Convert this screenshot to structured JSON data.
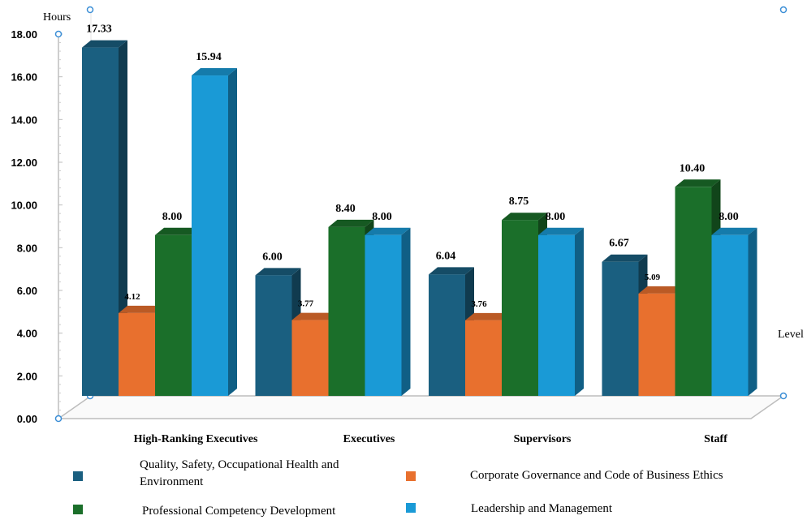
{
  "chart_data": {
    "type": "bar",
    "ylabel": "Hours",
    "xlabel": "Level",
    "ylim": [
      0,
      18
    ],
    "yticks": [
      "0.00",
      "2.00",
      "4.00",
      "6.00",
      "8.00",
      "10.00",
      "12.00",
      "14.00",
      "16.00",
      "18.00"
    ],
    "categories": [
      "High-Ranking Executives",
      "Executives",
      "Supervisors",
      "Staff"
    ],
    "series": [
      {
        "name": "Quality, Safety, Occupational Health and Environment",
        "color": "#1a5f80",
        "values": [
          17.33,
          6.0,
          6.04,
          6.67
        ],
        "labels": [
          "17.33",
          "6.00",
          "6.04",
          "6.67"
        ]
      },
      {
        "name": "Corporate Governance and Code of Business Ethics",
        "color": "#e8702e",
        "values": [
          4.12,
          3.77,
          3.76,
          5.09
        ],
        "labels": [
          "4.12",
          "3.77",
          "3.76",
          "5.09"
        ]
      },
      {
        "name": "Professional Competency Development",
        "color": "#1b6f2a",
        "values": [
          8.0,
          8.4,
          8.75,
          10.4
        ],
        "labels": [
          "8.00",
          "8.40",
          "8.75",
          "10.40"
        ]
      },
      {
        "name": "Leadership and Management",
        "color": "#1a9ad6",
        "values": [
          15.94,
          8.0,
          8.0,
          8.0
        ],
        "labels": [
          "15.94",
          "8.00",
          "8.00",
          "8.00"
        ]
      }
    ],
    "grid": false,
    "legend_position": "bottom"
  }
}
